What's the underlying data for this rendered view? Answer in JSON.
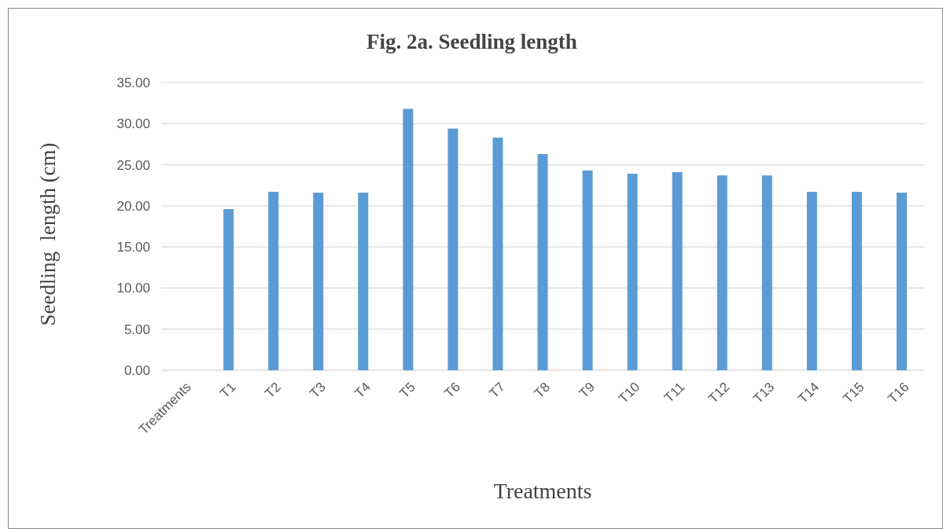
{
  "chart_data": {
    "type": "bar",
    "title": "Fig. 2a. Seedling length",
    "xlabel": "Treatments",
    "ylabel": "Seedling  length (cm)",
    "categories": [
      "Treatments",
      "T1",
      "T2",
      "T3",
      "T4",
      "T5",
      "T6",
      "T7",
      "T8",
      "T9",
      "T10",
      "T11",
      "T12",
      "T13",
      "T14",
      "T15",
      "T16"
    ],
    "values": [
      null,
      19.6,
      21.7,
      21.6,
      21.6,
      31.8,
      29.4,
      28.3,
      26.3,
      24.3,
      23.9,
      24.1,
      23.7,
      23.7,
      21.7,
      21.7,
      21.6
    ],
    "color": "#5b9bd5",
    "ylim": [
      0,
      35
    ],
    "yticks": [
      {
        "value": 0,
        "label": "0.00"
      },
      {
        "value": 5,
        "label": "5.00"
      },
      {
        "value": 10,
        "label": "10.00"
      },
      {
        "value": 15,
        "label": "15.00"
      },
      {
        "value": 20,
        "label": "20.00"
      },
      {
        "value": 25,
        "label": "25.00"
      },
      {
        "value": 30,
        "label": "30.00"
      },
      {
        "value": 35,
        "label": "35.00"
      }
    ],
    "grid": "y"
  }
}
